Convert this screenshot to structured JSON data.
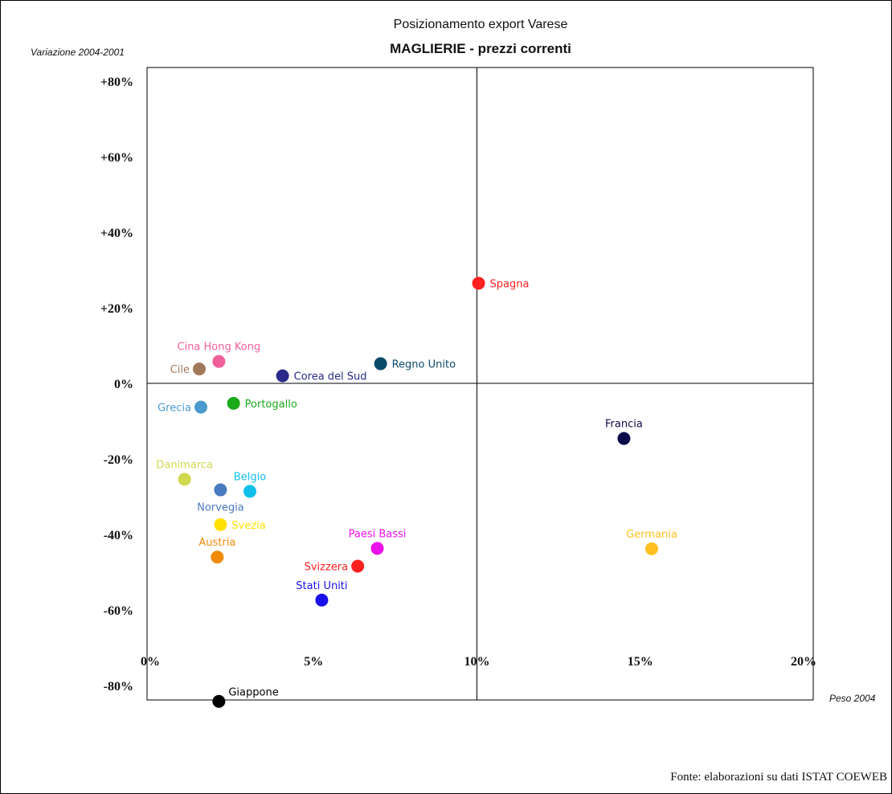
{
  "chart_data": {
    "type": "scatter",
    "title": "Posizionamento export Varese",
    "subtitle": "MAGLIERIE - prezzi correnti",
    "ylabel": "Variazione 2004-2001",
    "xlabel": "Peso 2004",
    "source": "Fonte: elaborazioni su dati ISTAT COEWEB",
    "xlim": [
      0,
      20
    ],
    "ylim": [
      -84,
      84
    ],
    "x_ticks": [
      {
        "value": 0,
        "label": "0%"
      },
      {
        "value": 5,
        "label": "5%"
      },
      {
        "value": 10,
        "label": "10%"
      },
      {
        "value": 15,
        "label": "15%"
      },
      {
        "value": 20,
        "label": "20%"
      }
    ],
    "y_ticks": [
      {
        "value": 80,
        "label": "+80%"
      },
      {
        "value": 60,
        "label": "+60%"
      },
      {
        "value": 40,
        "label": "+40%"
      },
      {
        "value": 20,
        "label": "+20%"
      },
      {
        "value": 0,
        "label": "0%"
      },
      {
        "value": -20,
        "label": "-20%"
      },
      {
        "value": -40,
        "label": "-40%"
      },
      {
        "value": -60,
        "label": "-60%"
      },
      {
        "value": -80,
        "label": "-80%"
      }
    ],
    "reference_lines": {
      "x": 10,
      "y": 0
    },
    "grid": false,
    "points": [
      {
        "name": "Spagna",
        "x": 10.05,
        "y": 26.5,
        "color": "#ff2020",
        "label_pos": "right"
      },
      {
        "name": "Cina Hong Kong",
        "x": 2.1,
        "y": 5.8,
        "color": "#f0609a",
        "label_pos": "above"
      },
      {
        "name": "Cile",
        "x": 1.5,
        "y": 3.8,
        "color": "#a0785a",
        "label_pos": "left"
      },
      {
        "name": "Corea del Sud",
        "x": 4.05,
        "y": 2.0,
        "color": "#2a2a8a",
        "label_pos": "right"
      },
      {
        "name": "Regno Unito",
        "x": 7.05,
        "y": 5.2,
        "color": "#0a4a6a",
        "label_pos": "right"
      },
      {
        "name": "Grecia",
        "x": 1.55,
        "y": -6.3,
        "color": "#4a9ad0",
        "label_pos": "left"
      },
      {
        "name": "Portogallo",
        "x": 2.55,
        "y": -5.3,
        "color": "#1aaa1a",
        "label_pos": "right"
      },
      {
        "name": "Francia",
        "x": 14.5,
        "y": -14.6,
        "color": "#0a0a4a",
        "label_pos": "above"
      },
      {
        "name": "Danimarca",
        "x": 1.05,
        "y": -25.4,
        "color": "#d0d850",
        "label_pos": "above"
      },
      {
        "name": "Norvegia",
        "x": 2.15,
        "y": -28.2,
        "color": "#4a7ac0",
        "label_pos": "below"
      },
      {
        "name": "Belgio",
        "x": 3.05,
        "y": -28.6,
        "color": "#10c0ea",
        "label_pos": "above"
      },
      {
        "name": "Svezia",
        "x": 2.15,
        "y": -37.4,
        "color": "#ffe000",
        "label_pos": "right"
      },
      {
        "name": "Austria",
        "x": 2.05,
        "y": -46.0,
        "color": "#f08c0a",
        "label_pos": "above"
      },
      {
        "name": "Paesi Bassi",
        "x": 6.95,
        "y": -43.7,
        "color": "#ea10ea",
        "label_pos": "above"
      },
      {
        "name": "Svizzera",
        "x": 6.35,
        "y": -48.4,
        "color": "#ff2020",
        "label_pos": "left"
      },
      {
        "name": "Stati Uniti",
        "x": 5.25,
        "y": -57.4,
        "color": "#1a10ea",
        "label_pos": "above"
      },
      {
        "name": "Germania",
        "x": 15.35,
        "y": -43.8,
        "color": "#ffc020",
        "label_pos": "above"
      },
      {
        "name": "Giappone",
        "x": 2.1,
        "y": -84.2,
        "color": "#000000",
        "label_pos": "right-above"
      }
    ]
  }
}
